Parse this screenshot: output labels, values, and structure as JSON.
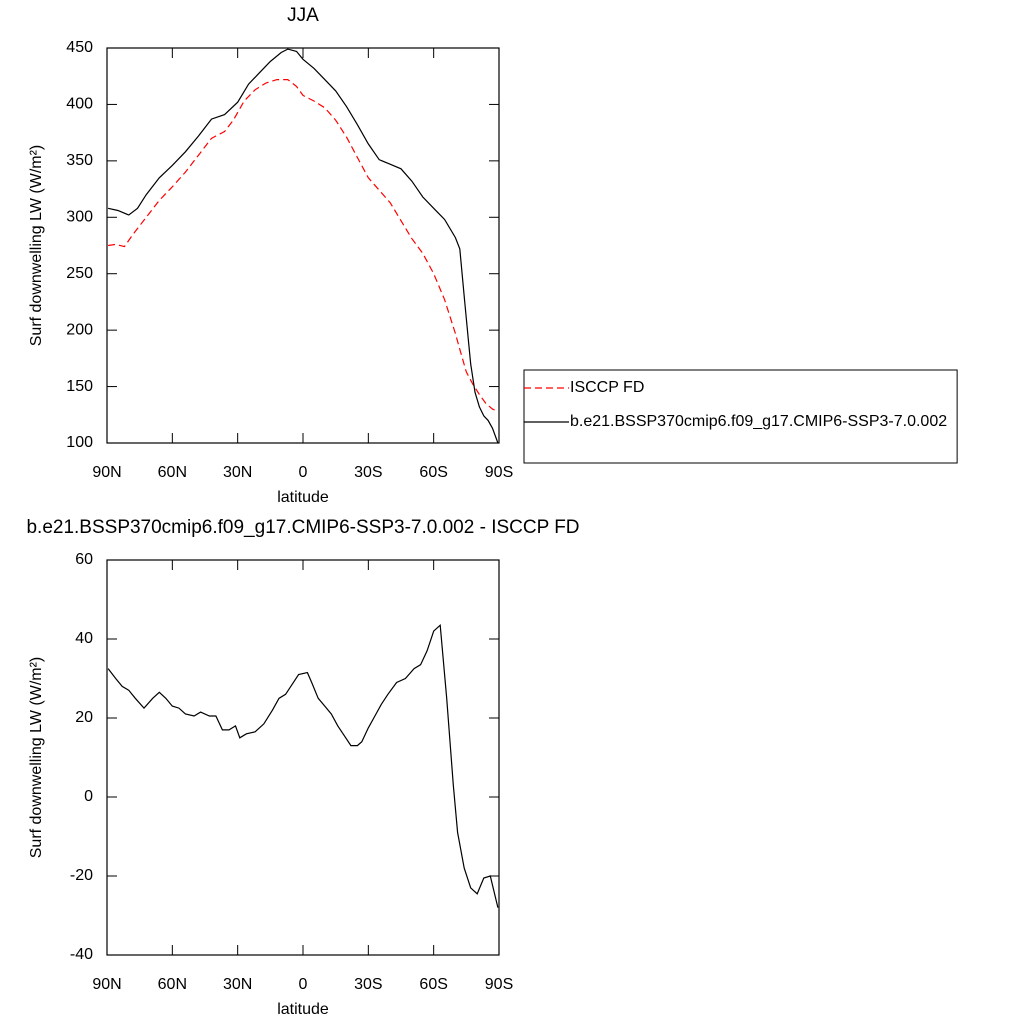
{
  "chart_data": [
    {
      "type": "line",
      "title": "JJA",
      "xlabel": "latitude",
      "ylabel": "Surf downwelling LW (W/m²)",
      "xlim": [
        90,
        -90
      ],
      "ylim": [
        100,
        450
      ],
      "xticks": [
        {
          "value": 90,
          "label": "90N"
        },
        {
          "value": 60,
          "label": "60N"
        },
        {
          "value": 30,
          "label": "30N"
        },
        0,
        {
          "value": -30,
          "label": "30S"
        },
        {
          "value": -60,
          "label": "60S"
        },
        {
          "value": -90,
          "label": "90S"
        }
      ],
      "yticks": [
        100,
        150,
        200,
        250,
        300,
        350,
        400,
        450
      ],
      "legend": "outside-right",
      "series": [
        {
          "name": "ISCCP FD",
          "color": "#ff0000",
          "dash": "dashed",
          "x": [
            89.5,
            86,
            82,
            78,
            72,
            66,
            60,
            54,
            48,
            42,
            36,
            32,
            27,
            22,
            17,
            12,
            7,
            3,
            0,
            -5,
            -10,
            -15,
            -20,
            -25,
            -30,
            -35,
            -40,
            -45,
            -50,
            -55,
            -60,
            -65,
            -70,
            -72,
            -75,
            -78,
            -81,
            -84,
            -87,
            -89.5
          ],
          "values": [
            275,
            276,
            274,
            285,
            300,
            315,
            327,
            340,
            355,
            370,
            376,
            386,
            403,
            413,
            419,
            422,
            422,
            416,
            408,
            403,
            397,
            386,
            371,
            353,
            335,
            324,
            313,
            297,
            281,
            268,
            250,
            227,
            197,
            183,
            163,
            152,
            143,
            135,
            130,
            128
          ]
        },
        {
          "name": "b.e21.BSSP370cmip6.f09_g17.CMIP6-SSP3-7.0.002",
          "color": "#000000",
          "dash": "solid",
          "x": [
            89.5,
            85,
            80,
            76,
            72,
            66,
            60,
            54,
            48,
            42,
            36,
            30,
            25,
            20,
            15,
            10,
            7,
            3,
            0,
            -5,
            -10,
            -15,
            -20,
            -25,
            -30,
            -35,
            -40,
            -45,
            -50,
            -55,
            -60,
            -65,
            -70,
            -72,
            -74,
            -76,
            -77,
            -79,
            -81,
            -83,
            -85,
            -87,
            -89.5
          ],
          "values": [
            308,
            306,
            302,
            308,
            320,
            335,
            346,
            358,
            372,
            387,
            391,
            402,
            418,
            428,
            438,
            446,
            449,
            447,
            440,
            432,
            422,
            412,
            398,
            382,
            365,
            351,
            347,
            343,
            332,
            318,
            308,
            298,
            282,
            272,
            230,
            190,
            170,
            145,
            132,
            124,
            120,
            113,
            100
          ]
        }
      ]
    },
    {
      "type": "line",
      "title": "b.e21.BSSP370cmip6.f09_g17.CMIP6-SSP3-7.0.002 - ISCCP FD",
      "xlabel": "latitude",
      "ylabel": "Surf downwelling LW (W/m²)",
      "xlim": [
        90,
        -90
      ],
      "ylim": [
        -40,
        60
      ],
      "xticks": [
        {
          "value": 90,
          "label": "90N"
        },
        {
          "value": 60,
          "label": "60N"
        },
        {
          "value": 30,
          "label": "30N"
        },
        0,
        {
          "value": -30,
          "label": "30S"
        },
        {
          "value": -60,
          "label": "60S"
        },
        {
          "value": -90,
          "label": "90S"
        }
      ],
      "yticks": [
        -40,
        -20,
        0,
        20,
        40,
        60
      ],
      "series": [
        {
          "color": "#000000",
          "dash": "solid",
          "x": [
            89.5,
            86,
            83,
            80,
            77,
            73,
            69,
            66,
            63,
            60,
            57,
            54,
            50,
            47,
            43,
            40,
            37,
            34,
            31,
            29,
            26,
            22,
            18,
            14,
            11,
            8,
            5,
            2,
            -2,
            -4,
            -7,
            -10,
            -13,
            -16,
            -19,
            -22,
            -25,
            -27,
            -30,
            -33,
            -36,
            -39,
            -43,
            -47,
            -51,
            -54,
            -57,
            -60,
            -63,
            -66,
            -69,
            -71,
            -74,
            -77,
            -80,
            -83,
            -86,
            -89.5
          ],
          "values": [
            32.5,
            30,
            28,
            27,
            25,
            22.5,
            25,
            26.5,
            25,
            23,
            22.5,
            21,
            20.5,
            21.5,
            20.5,
            20.5,
            17,
            17,
            18,
            15,
            16,
            16.5,
            18.5,
            22,
            25,
            26,
            28.5,
            31,
            31.5,
            29,
            25,
            23,
            21,
            18,
            15.5,
            13,
            13,
            14,
            17.5,
            20.5,
            23.5,
            26,
            29,
            30,
            32.5,
            33.5,
            37,
            42,
            43.5,
            25,
            3,
            -9,
            -18,
            -23,
            -24.5,
            -20.5,
            -20,
            -28
          ]
        }
      ]
    }
  ]
}
